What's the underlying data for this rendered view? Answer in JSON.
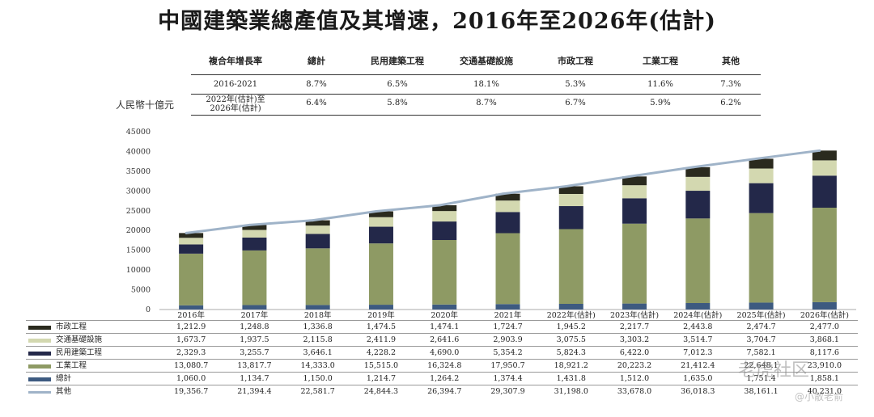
{
  "title": "中國建築業總產值及其增速，2016年至2026年(估計)",
  "unit_label": "人民幣十億元",
  "cagr_table": {
    "headers": [
      "複合年增長率",
      "總計",
      "民用建築工程",
      "交通基礎設施",
      "市政工程",
      "工業工程",
      "其他"
    ],
    "rows": [
      {
        "period": "2016-2021",
        "values": [
          "8.7%",
          "6.5%",
          "18.1%",
          "5.3%",
          "11.6%",
          "7.3%"
        ]
      },
      {
        "period_line1": "2022年(估計)至",
        "period_line2": "2026年(估計)",
        "values": [
          "6.4%",
          "5.8%",
          "8.7%",
          "6.7%",
          "5.9%",
          "6.2%"
        ]
      }
    ]
  },
  "colors": {
    "bottom": "#3d5a80",
    "industrial": "#8e9a64",
    "civil": "#232849",
    "transport": "#d3d8b0",
    "municipal": "#2a2a1e",
    "line": "#9fb3c8"
  },
  "chart_data": {
    "type": "bar",
    "stacked": true,
    "title": "中國建築業總產值及其增速，2016年至2026年(估計)",
    "ylabel": "人民幣十億元",
    "ylim": [
      0,
      45000
    ],
    "yticks": [
      0,
      5000,
      10000,
      15000,
      20000,
      25000,
      30000,
      35000,
      40000,
      45000
    ],
    "categories": [
      "2016年",
      "2017年",
      "2018年",
      "2019年",
      "2020年",
      "2021年",
      "2022年(估計)",
      "2023年(估計)",
      "2024年(估計)",
      "2025年(估計)",
      "2026年(估計)"
    ],
    "stack_order_bottom_to_top": [
      "總計",
      "工業工程",
      "民用建築工程",
      "交通基礎設施",
      "市政工程"
    ],
    "series": [
      {
        "name": "市政工程",
        "legend": "市政工程",
        "swatch": "#2a2a1e",
        "type": "bar",
        "values": [
          1212.9,
          1248.8,
          1336.8,
          1474.5,
          1474.1,
          1724.7,
          1945.2,
          2217.7,
          2443.8,
          2474.7,
          2477.0
        ],
        "labels": [
          "1,212.9",
          "1,248.8",
          "1,336.8",
          "1,474.5",
          "1,474.1",
          "1,724.7",
          "1,945.2",
          "2,217.7",
          "2,443.8",
          "2,474.7",
          "2,477.0"
        ]
      },
      {
        "name": "交通基礎設施",
        "legend": "交通基礎設施",
        "swatch": "#d3d8b0",
        "type": "bar",
        "values": [
          1673.7,
          1937.5,
          2115.8,
          2411.9,
          2641.6,
          2903.9,
          3075.5,
          3303.2,
          3514.7,
          3704.7,
          3868.1
        ],
        "labels": [
          "1,673.7",
          "1,937.5",
          "2,115.8",
          "2,411.9",
          "2,641.6",
          "2,903.9",
          "3,075.5",
          "3,303.2",
          "3,514.7",
          "3,704.7",
          "3,868.1"
        ]
      },
      {
        "name": "民用建築工程",
        "legend": "民用建築工程",
        "swatch": "#232849",
        "type": "bar",
        "values": [
          2329.3,
          3255.7,
          3646.1,
          4228.2,
          4690.0,
          5354.2,
          5824.3,
          6422.0,
          7012.3,
          7582.1,
          8117.6
        ],
        "labels": [
          "2,329.3",
          "3,255.7",
          "3,646.1",
          "4,228.2",
          "4,690.0",
          "5,354.2",
          "5,824.3",
          "6,422.0",
          "7,012.3",
          "7,582.1",
          "8,117.6"
        ]
      },
      {
        "name": "工業工程",
        "legend": "工業工程",
        "swatch": "#8e9a64",
        "type": "bar",
        "values": [
          13080.7,
          13817.7,
          14333.0,
          15515.0,
          16324.8,
          17950.7,
          18921.2,
          20223.2,
          21412.4,
          22648.1,
          23910.0
        ],
        "labels": [
          "13,080.7",
          "13,817.7",
          "14,333.0",
          "15,515.0",
          "16,324.8",
          "17,950.7",
          "18,921.2",
          "20,223.2",
          "21,412.4",
          "22,648.1",
          "23,910.0"
        ]
      },
      {
        "name": "總計",
        "legend": "總計",
        "swatch": "#3d5a80",
        "type": "bar",
        "values": [
          1060.0,
          1134.7,
          1150.0,
          1214.7,
          1264.2,
          1374.4,
          1431.8,
          1512.0,
          1635.0,
          1751.4,
          1858.1
        ],
        "labels": [
          "1,060.0",
          "1,134.7",
          "1,150.0",
          "1,214.7",
          "1,264.2",
          "1,374.4",
          "1,431.8",
          "1,512.0",
          "1,635.0",
          "1,751.4",
          "1,858.1"
        ]
      },
      {
        "name": "其他",
        "legend": "其他",
        "swatch": "#9fb3c8",
        "type": "line",
        "values": [
          19356.7,
          21394.4,
          22581.7,
          24844.3,
          26394.7,
          29307.9,
          31198.0,
          33678.0,
          36018.3,
          38161.1,
          40231.0
        ],
        "labels": [
          "19,356.7",
          "21,394.4",
          "22,581.7",
          "24,844.3",
          "26,394.7",
          "29,307.9",
          "31,198.0",
          "33,678.0",
          "36,018.3",
          "38,161.1",
          "40,231.0"
        ]
      }
    ]
  },
  "watermarks": [
    "老虎社区",
    "@小散老俞"
  ]
}
